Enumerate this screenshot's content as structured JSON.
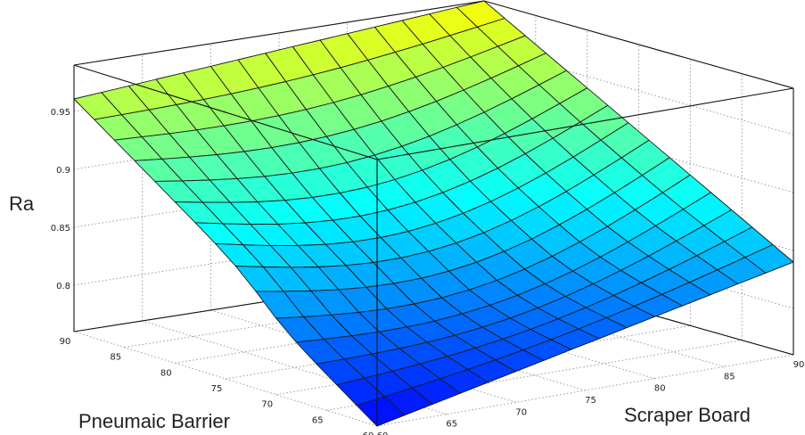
{
  "chart_data": {
    "type": "surface",
    "zlabel": "Ra",
    "xlabel": "Pneumaic Barrier",
    "ylabel": "Scraper Board",
    "x_ticks": [
      "60",
      "65",
      "70",
      "75",
      "80",
      "85",
      "90"
    ],
    "y_ticks": [
      "60",
      "65",
      "70",
      "75",
      "80",
      "85",
      "90"
    ],
    "z_ticks": [
      "0.8",
      "0.85",
      "0.9",
      "0.95"
    ],
    "xlim": [
      60,
      90
    ],
    "ylim": [
      60,
      90
    ],
    "zlim": [
      0.76,
      0.99
    ],
    "grid": true,
    "colormap": [
      "#0000ff",
      "#00ffff",
      "#ffff00"
    ],
    "corner_values": {
      "x60_y60": 0.775,
      "x90_y60": 0.945,
      "x60_y90": 0.84,
      "x90_y90": 0.99
    },
    "grid_size": [
      15,
      15
    ]
  }
}
